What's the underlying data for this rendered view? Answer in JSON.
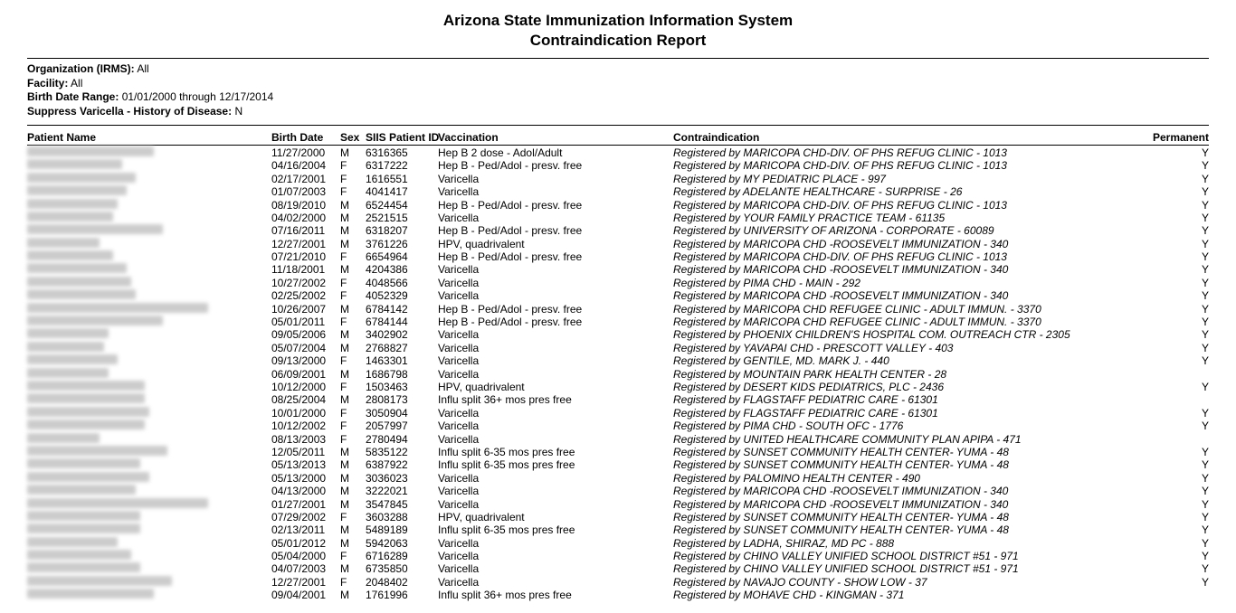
{
  "title": {
    "line1": "Arizona State Immunization Information System",
    "line2": "Contraindication Report"
  },
  "meta": {
    "org_label": "Organization (IRMS):",
    "org_value": "All",
    "facility_label": "Facility:",
    "facility_value": "All",
    "bdr_label": "Birth Date Range:",
    "bdr_value": "01/01/2000 through  12/17/2014",
    "sup_label": "Suppress Varicella - History of Disease:",
    "sup_value": "N"
  },
  "columns": {
    "name": "Patient Name",
    "bdate": "Birth Date",
    "sex": "Sex",
    "pid": "SIIS Patient ID",
    "vacc": "Vaccination",
    "contra": "Contraindication",
    "perm": "Permanent"
  },
  "rows": [
    {
      "bdate": "11/27/2000",
      "sex": "M",
      "pid": "6316365",
      "vacc": "Hep B 2 dose - Adol/Adult",
      "contra": "Registered by MARICOPA CHD-DIV. OF PHS REFUG CLINIC  -  1013",
      "perm": "Y",
      "nw": 140
    },
    {
      "bdate": "04/16/2004",
      "sex": "F",
      "pid": "6317222",
      "vacc": "Hep B - Ped/Adol - presv. free",
      "contra": "Registered by MARICOPA CHD-DIV. OF PHS REFUG CLINIC  -  1013",
      "perm": "Y",
      "nw": 105
    },
    {
      "bdate": "02/17/2001",
      "sex": "F",
      "pid": "1616551",
      "vacc": "Varicella",
      "contra": "Registered by MY PEDIATRIC PLACE  -  997",
      "perm": "Y",
      "nw": 120
    },
    {
      "bdate": "01/07/2003",
      "sex": "F",
      "pid": "4041417",
      "vacc": "Varicella",
      "contra": "Registered by ADELANTE HEALTHCARE - SURPRISE  -  26",
      "perm": "Y",
      "nw": 110
    },
    {
      "bdate": "08/19/2010",
      "sex": "M",
      "pid": "6524454",
      "vacc": "Hep B - Ped/Adol - presv. free",
      "contra": "Registered by MARICOPA CHD-DIV. OF PHS REFUG CLINIC  -  1013",
      "perm": "Y",
      "nw": 100
    },
    {
      "bdate": "04/02/2000",
      "sex": "M",
      "pid": "2521515",
      "vacc": "Varicella",
      "contra": "Registered by YOUR FAMILY PRACTICE TEAM  -  61135",
      "perm": "Y",
      "nw": 95
    },
    {
      "bdate": "07/16/2011",
      "sex": "M",
      "pid": "6318207",
      "vacc": "Hep B - Ped/Adol - presv. free",
      "contra": "Registered by UNIVERSITY OF ARIZONA - CORPORATE  -  60089",
      "perm": "Y",
      "nw": 150
    },
    {
      "bdate": "12/27/2001",
      "sex": "M",
      "pid": "3761226",
      "vacc": "HPV, quadrivalent",
      "contra": "Registered by MARICOPA CHD -ROOSEVELT IMMUNIZATION  -  340",
      "perm": "Y",
      "nw": 80
    },
    {
      "bdate": "07/21/2010",
      "sex": "F",
      "pid": "6654964",
      "vacc": "Hep B - Ped/Adol - presv. free",
      "contra": "Registered by MARICOPA CHD-DIV. OF PHS REFUG CLINIC  -  1013",
      "perm": "Y",
      "nw": 95
    },
    {
      "bdate": "11/18/2001",
      "sex": "M",
      "pid": "4204386",
      "vacc": "Varicella",
      "contra": "Registered by MARICOPA CHD -ROOSEVELT IMMUNIZATION  -  340",
      "perm": "Y",
      "nw": 110
    },
    {
      "bdate": "10/27/2002",
      "sex": "F",
      "pid": "4048566",
      "vacc": "Varicella",
      "contra": "Registered by PIMA CHD - MAIN  -  292",
      "perm": "Y",
      "nw": 115
    },
    {
      "bdate": "02/25/2002",
      "sex": "F",
      "pid": "4052329",
      "vacc": "Varicella",
      "contra": "Registered by MARICOPA CHD -ROOSEVELT IMMUNIZATION  -  340",
      "perm": "Y",
      "nw": 120
    },
    {
      "bdate": "10/26/2007",
      "sex": "M",
      "pid": "6784142",
      "vacc": "Hep B - Ped/Adol - presv. free",
      "contra": "Registered by MARICOPA CHD REFUGEE CLINIC - ADULT IMMUN.  -  3370",
      "perm": "Y",
      "nw": 200
    },
    {
      "bdate": "05/01/2011",
      "sex": "F",
      "pid": "6784144",
      "vacc": "Hep B - Ped/Adol - presv. free",
      "contra": "Registered by MARICOPA CHD REFUGEE CLINIC - ADULT IMMUN.  -  3370",
      "perm": "Y",
      "nw": 150
    },
    {
      "bdate": "09/05/2006",
      "sex": "M",
      "pid": "3402902",
      "vacc": "Varicella",
      "contra": "Registered by PHOENIX CHILDREN'S HOSPITAL COM. OUTREACH CTR  -  2305",
      "perm": "Y",
      "nw": 90
    },
    {
      "bdate": "05/07/2004",
      "sex": "M",
      "pid": "2768827",
      "vacc": "Varicella",
      "contra": "Registered by YAVAPAI CHD - PRESCOTT VALLEY  -  403",
      "perm": "Y",
      "nw": 85
    },
    {
      "bdate": "09/13/2000",
      "sex": "F",
      "pid": "1463301",
      "vacc": "Varicella",
      "contra": "Registered by GENTILE, MD. MARK J.  -  440",
      "perm": "Y",
      "nw": 100
    },
    {
      "bdate": "06/09/2001",
      "sex": "M",
      "pid": "1686798",
      "vacc": "Varicella",
      "contra": "Registered by MOUNTAIN PARK HEALTH CENTER  -  28",
      "perm": "",
      "nw": 90
    },
    {
      "bdate": "10/12/2000",
      "sex": "F",
      "pid": "1503463",
      "vacc": "HPV, quadrivalent",
      "contra": "Registered by DESERT KIDS PEDIATRICS, PLC  -  2436",
      "perm": "Y",
      "nw": 130
    },
    {
      "bdate": "08/25/2004",
      "sex": "M",
      "pid": "2808173",
      "vacc": "Influ split 36+ mos pres free",
      "contra": "Registered by FLAGSTAFF PEDIATRIC CARE  -  61301",
      "perm": "",
      "nw": 130
    },
    {
      "bdate": "10/01/2000",
      "sex": "F",
      "pid": "3050904",
      "vacc": "Varicella",
      "contra": "Registered by FLAGSTAFF PEDIATRIC CARE  -  61301",
      "perm": "Y",
      "nw": 135
    },
    {
      "bdate": "10/12/2002",
      "sex": "F",
      "pid": "2057997",
      "vacc": "Varicella",
      "contra": "Registered by PIMA CHD - SOUTH OFC  -  1776",
      "perm": "Y",
      "nw": 130
    },
    {
      "bdate": "08/13/2003",
      "sex": "F",
      "pid": "2780494",
      "vacc": "Varicella",
      "contra": "Registered by UNITED HEALTHCARE COMMUNITY PLAN APIPA  -  471",
      "perm": "",
      "nw": 80
    },
    {
      "bdate": "12/05/2011",
      "sex": "M",
      "pid": "5835122",
      "vacc": "Influ split 6-35 mos pres free",
      "contra": "Registered by SUNSET COMMUNITY HEALTH CENTER- YUMA  -  48",
      "perm": "Y",
      "nw": 155
    },
    {
      "bdate": "05/13/2013",
      "sex": "M",
      "pid": "6387922",
      "vacc": "Influ split 6-35 mos pres free",
      "contra": "Registered by SUNSET COMMUNITY HEALTH CENTER- YUMA  -  48",
      "perm": "Y",
      "nw": 125
    },
    {
      "bdate": "05/13/2000",
      "sex": "M",
      "pid": "3036023",
      "vacc": "Varicella",
      "contra": "Registered by PALOMINO HEALTH CENTER  -  490",
      "perm": "Y",
      "nw": 135
    },
    {
      "bdate": "04/13/2000",
      "sex": "M",
      "pid": "3222021",
      "vacc": "Varicella",
      "contra": "Registered by MARICOPA CHD -ROOSEVELT IMMUNIZATION  -  340",
      "perm": "Y",
      "nw": 120
    },
    {
      "bdate": "01/27/2001",
      "sex": "M",
      "pid": "3547845",
      "vacc": "Varicella",
      "contra": "Registered by MARICOPA CHD -ROOSEVELT IMMUNIZATION  -  340",
      "perm": "Y",
      "nw": 200
    },
    {
      "bdate": "07/29/2002",
      "sex": "F",
      "pid": "3603288",
      "vacc": "HPV, quadrivalent",
      "contra": "Registered by SUNSET COMMUNITY HEALTH CENTER- YUMA  -  48",
      "perm": "Y",
      "nw": 125
    },
    {
      "bdate": "02/13/2011",
      "sex": "M",
      "pid": "5489189",
      "vacc": "Influ split 6-35 mos pres free",
      "contra": "Registered by SUNSET COMMUNITY HEALTH CENTER- YUMA  -  48",
      "perm": "Y",
      "nw": 125
    },
    {
      "bdate": "05/01/2012",
      "sex": "M",
      "pid": "5942063",
      "vacc": "Varicella",
      "contra": "Registered by LADHA, SHIRAZ, MD PC  -  888",
      "perm": "Y",
      "nw": 100
    },
    {
      "bdate": "05/04/2000",
      "sex": "F",
      "pid": "6716289",
      "vacc": "Varicella",
      "contra": "Registered by CHINO VALLEY UNIFIED SCHOOL DISTRICT #51  -  971",
      "perm": "Y",
      "nw": 115
    },
    {
      "bdate": "04/07/2003",
      "sex": "M",
      "pid": "6735850",
      "vacc": "Varicella",
      "contra": "Registered by CHINO VALLEY UNIFIED SCHOOL DISTRICT #51  -  971",
      "perm": "Y",
      "nw": 125
    },
    {
      "bdate": "12/27/2001",
      "sex": "F",
      "pid": "2048402",
      "vacc": "Varicella",
      "contra": "Registered by NAVAJO COUNTY - SHOW LOW  -  37",
      "perm": "Y",
      "nw": 160
    },
    {
      "bdate": "09/04/2001",
      "sex": "M",
      "pid": "1761996",
      "vacc": "Influ split 36+ mos pres free",
      "contra": "Registered by MOHAVE CHD - KINGMAN  -  371",
      "perm": "",
      "nw": 140
    }
  ]
}
